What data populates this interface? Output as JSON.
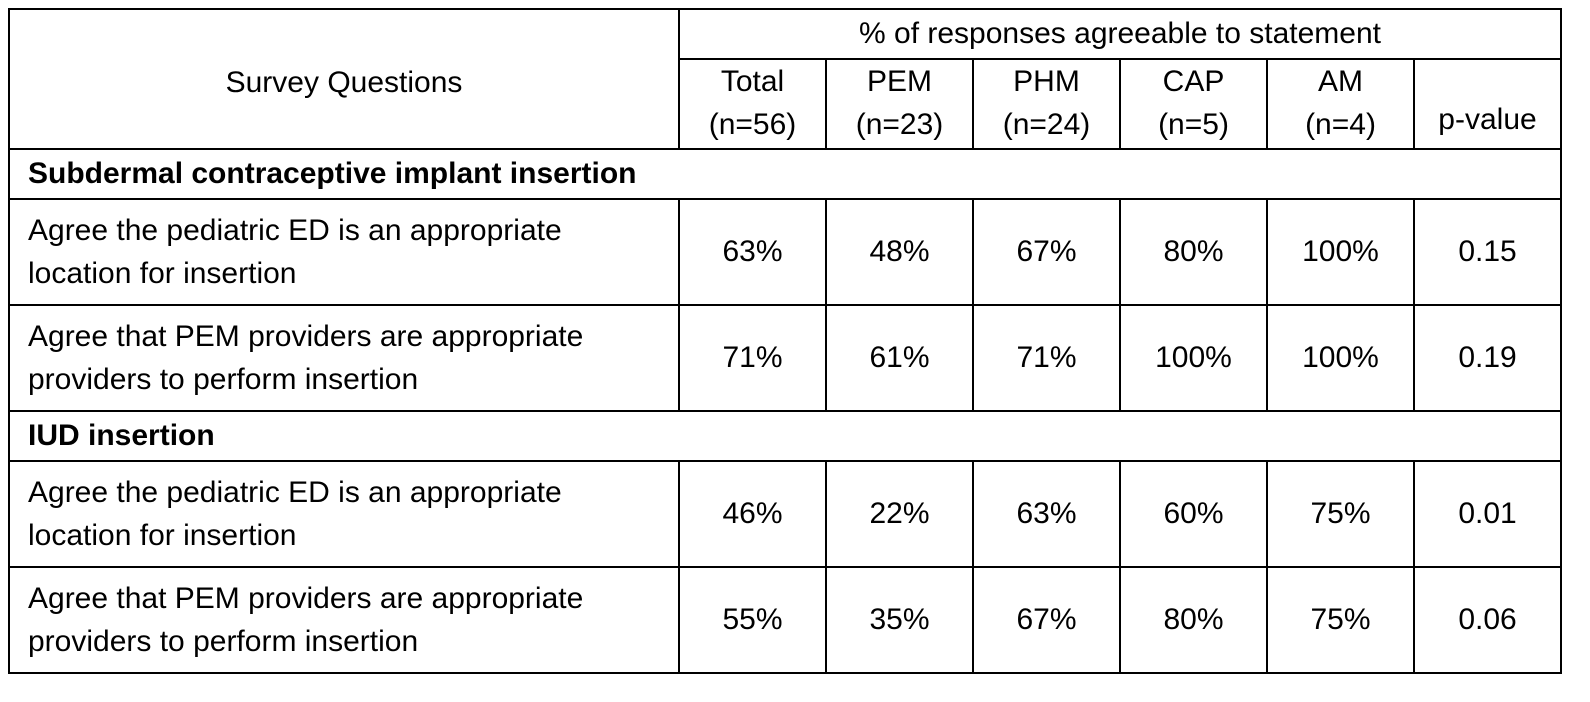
{
  "table": {
    "question_header": "Survey Questions",
    "span_header": "% of responses agreeable to statement",
    "columns": [
      {
        "name": "Total",
        "n": "(n=56)"
      },
      {
        "name": "PEM",
        "n": "(n=23)"
      },
      {
        "name": "PHM",
        "n": "(n=24)"
      },
      {
        "name": "CAP",
        "n": "(n=5)"
      },
      {
        "name": "AM",
        "n": "(n=4)"
      }
    ],
    "pvalue_header": "p-value",
    "sections": [
      {
        "title": "Subdermal contraceptive implant insertion",
        "rows": [
          {
            "question_line1": "Agree the pediatric ED is an appropriate",
            "question_line2": "location for insertion",
            "values": [
              "63%",
              "48%",
              "67%",
              "80%",
              "100%"
            ],
            "p": "0.15"
          },
          {
            "question_line1": "Agree that PEM providers are appropriate",
            "question_line2": "providers to perform insertion",
            "values": [
              "71%",
              "61%",
              "71%",
              "100%",
              "100%"
            ],
            "p": "0.19"
          }
        ]
      },
      {
        "title": "IUD insertion",
        "rows": [
          {
            "question_line1": "Agree the pediatric ED is an appropriate",
            "question_line2": "location for insertion",
            "values": [
              "46%",
              "22%",
              "63%",
              "60%",
              "75%"
            ],
            "p": "0.01"
          },
          {
            "question_line1": "Agree that PEM providers are appropriate",
            "question_line2": "providers to perform insertion",
            "values": [
              "55%",
              "35%",
              "67%",
              "80%",
              "75%"
            ],
            "p": "0.06"
          }
        ]
      }
    ]
  }
}
